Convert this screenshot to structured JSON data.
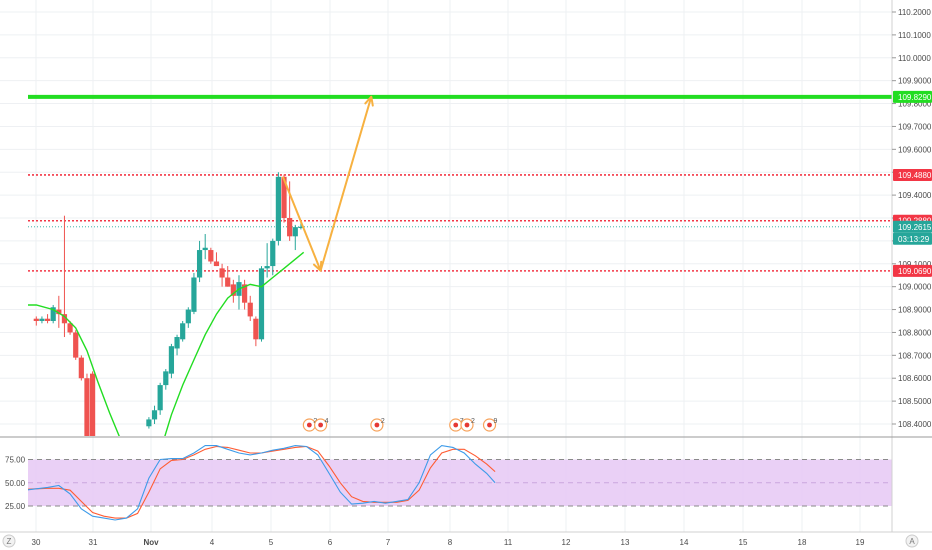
{
  "chart_data": {
    "type": "candlestick",
    "price_axis": {
      "ticks": [
        "110.2000",
        "110.1000",
        "110.0000",
        "109.9000",
        "109.8000",
        "109.7000",
        "109.6000",
        "109.5000",
        "109.4000",
        "109.3000",
        "109.2000",
        "109.1000",
        "109.0000",
        "108.9000",
        "108.8000",
        "108.7000",
        "108.6000",
        "108.5000",
        "108.4000"
      ],
      "range": [
        108.33,
        110.25
      ]
    },
    "time_axis": {
      "labels": [
        "30",
        "31",
        "Nov",
        "4",
        "5",
        "6",
        "7",
        "8",
        "11",
        "12",
        "13",
        "14",
        "15",
        "18",
        "19"
      ]
    },
    "price_labels": [
      {
        "text": "109.8290",
        "value": 109.829,
        "color": "#22dd22"
      },
      {
        "text": "109.4880",
        "value": 109.488,
        "color": "#f23645"
      },
      {
        "text": "109.2880",
        "value": 109.288,
        "color": "#f23645"
      },
      {
        "text": "109.2615",
        "value": 109.2615,
        "color": "#26a69a"
      },
      {
        "text": "03:13:29",
        "value": 109.2615,
        "color": "#26a69a"
      },
      {
        "text": "109.0690",
        "value": 109.069,
        "color": "#f23645"
      }
    ],
    "horizontal_lines": [
      {
        "value": 109.829,
        "color": "#22dd22",
        "style": "solid"
      },
      {
        "value": 109.488,
        "color": "#f23645",
        "style": "dotted"
      },
      {
        "value": 109.288,
        "color": "#f23645",
        "style": "dotted"
      },
      {
        "value": 109.069,
        "color": "#f23645",
        "style": "dotted"
      }
    ],
    "candles": [
      [
        0,
        108.86,
        108.87,
        108.83,
        108.85
      ],
      [
        1,
        108.85,
        108.87,
        108.84,
        108.86
      ],
      [
        2,
        108.86,
        108.88,
        108.84,
        108.85
      ],
      [
        3,
        108.85,
        108.92,
        108.84,
        108.91
      ],
      [
        4,
        108.9,
        108.96,
        108.82,
        108.88
      ],
      [
        5,
        108.88,
        109.31,
        108.78,
        108.84
      ],
      [
        6,
        108.84,
        108.85,
        108.79,
        108.8
      ],
      [
        7,
        108.8,
        108.81,
        108.68,
        108.69
      ],
      [
        8,
        108.69,
        108.7,
        108.59,
        108.6
      ],
      [
        9,
        108.6,
        108.62,
        108.2,
        108.22
      ],
      [
        10,
        108.62,
        108.63,
        108.1,
        108.15
      ],
      [
        20,
        108.39,
        108.43,
        108.38,
        108.42
      ],
      [
        21,
        108.42,
        108.48,
        108.4,
        108.46
      ],
      [
        22,
        108.46,
        108.58,
        108.44,
        108.57
      ],
      [
        23,
        108.57,
        108.64,
        108.55,
        108.63
      ],
      [
        24,
        108.62,
        108.75,
        108.6,
        108.74
      ],
      [
        25,
        108.73,
        108.79,
        108.7,
        108.78
      ],
      [
        26,
        108.77,
        108.85,
        108.76,
        108.84
      ],
      [
        27,
        108.84,
        108.91,
        108.82,
        108.9
      ],
      [
        28,
        108.89,
        109.06,
        108.88,
        109.04
      ],
      [
        29,
        109.04,
        109.2,
        109.02,
        109.16
      ],
      [
        30,
        109.16,
        109.23,
        109.12,
        109.17
      ],
      [
        31,
        109.16,
        109.17,
        109.1,
        109.11
      ],
      [
        32,
        109.11,
        109.15,
        109.09,
        109.09
      ],
      [
        33,
        109.08,
        109.1,
        109.0,
        109.04
      ],
      [
        34,
        109.04,
        109.09,
        109.0,
        109.0
      ],
      [
        35,
        109.01,
        109.03,
        108.93,
        108.96
      ],
      [
        36,
        108.96,
        109.05,
        108.9,
        109.02
      ],
      [
        37,
        109.01,
        109.03,
        108.9,
        108.93
      ],
      [
        38,
        108.93,
        108.96,
        108.85,
        108.87
      ],
      [
        39,
        108.86,
        108.87,
        108.74,
        108.77
      ],
      [
        40,
        108.77,
        109.09,
        108.76,
        109.08
      ],
      [
        41,
        109.08,
        109.19,
        109.04,
        109.09
      ],
      [
        42,
        109.09,
        109.21,
        109.05,
        109.2
      ],
      [
        43,
        109.2,
        109.5,
        109.18,
        109.48
      ],
      [
        44,
        109.48,
        109.49,
        109.28,
        109.3
      ],
      [
        45,
        109.3,
        109.46,
        109.2,
        109.22
      ],
      [
        46,
        109.22,
        109.27,
        109.16,
        109.26
      ],
      [
        47,
        109.26,
        109.28,
        109.25,
        109.2615
      ]
    ],
    "moving_average": [
      [
        -2,
        108.92
      ],
      [
        0,
        108.92
      ],
      [
        3,
        108.9
      ],
      [
        5,
        108.87
      ],
      [
        7,
        108.82
      ],
      [
        9,
        108.72
      ],
      [
        11,
        108.58
      ],
      [
        13,
        108.45
      ],
      [
        15,
        108.33
      ],
      [
        22,
        108.28
      ],
      [
        24,
        108.44
      ],
      [
        26,
        108.57
      ],
      [
        28,
        108.68
      ],
      [
        30,
        108.79
      ],
      [
        32,
        108.88
      ],
      [
        34,
        108.95
      ],
      [
        36,
        108.99
      ],
      [
        38,
        109.01
      ],
      [
        40,
        109.0
      ],
      [
        42,
        109.04
      ],
      [
        44,
        109.08
      ],
      [
        46,
        109.12
      ],
      [
        47.5,
        109.15
      ]
    ],
    "projection_arrow": [
      [
        43.8,
        109.48
      ],
      [
        50.5,
        109.07
      ],
      [
        59.5,
        109.83
      ]
    ],
    "stochastic": {
      "y_ticks": [
        "75.00",
        "50.00",
        "25.00"
      ],
      "band": [
        25,
        75
      ],
      "k": [
        [
          -2,
          42
        ],
        [
          2,
          45
        ],
        [
          4,
          47
        ],
        [
          6,
          38
        ],
        [
          8,
          22
        ],
        [
          10,
          14
        ],
        [
          12,
          12
        ],
        [
          14,
          10
        ],
        [
          16,
          12
        ],
        [
          18,
          22
        ],
        [
          20,
          55
        ],
        [
          22,
          75
        ],
        [
          24,
          76
        ],
        [
          26,
          76
        ],
        [
          28,
          82
        ],
        [
          30,
          90
        ],
        [
          32,
          90
        ],
        [
          34,
          86
        ],
        [
          36,
          82
        ],
        [
          38,
          80
        ],
        [
          40,
          82
        ],
        [
          42,
          85
        ],
        [
          44,
          87
        ],
        [
          46,
          90
        ],
        [
          48,
          89
        ],
        [
          50,
          80
        ],
        [
          52,
          60
        ],
        [
          54,
          40
        ],
        [
          56,
          27
        ],
        [
          58,
          28
        ],
        [
          60,
          30
        ],
        [
          62,
          28
        ],
        [
          64,
          30
        ],
        [
          66,
          32
        ],
        [
          68,
          50
        ],
        [
          70,
          80
        ],
        [
          72,
          90
        ],
        [
          74,
          88
        ],
        [
          76,
          82
        ],
        [
          78,
          70
        ],
        [
          80,
          60
        ],
        [
          81.5,
          50
        ]
      ],
      "d": [
        [
          -2,
          43
        ],
        [
          2,
          44
        ],
        [
          4,
          44
        ],
        [
          6,
          42
        ],
        [
          8,
          30
        ],
        [
          10,
          18
        ],
        [
          12,
          14
        ],
        [
          14,
          12
        ],
        [
          16,
          12
        ],
        [
          18,
          17
        ],
        [
          20,
          40
        ],
        [
          22,
          65
        ],
        [
          24,
          74
        ],
        [
          26,
          75
        ],
        [
          28,
          80
        ],
        [
          30,
          86
        ],
        [
          32,
          89
        ],
        [
          34,
          88
        ],
        [
          36,
          85
        ],
        [
          38,
          82
        ],
        [
          40,
          82
        ],
        [
          42,
          84
        ],
        [
          44,
          86
        ],
        [
          46,
          88
        ],
        [
          48,
          89
        ],
        [
          50,
          84
        ],
        [
          52,
          68
        ],
        [
          54,
          50
        ],
        [
          56,
          35
        ],
        [
          58,
          30
        ],
        [
          60,
          29
        ],
        [
          62,
          29
        ],
        [
          64,
          29
        ],
        [
          66,
          31
        ],
        [
          68,
          42
        ],
        [
          70,
          66
        ],
        [
          72,
          82
        ],
        [
          74,
          86
        ],
        [
          76,
          86
        ],
        [
          78,
          79
        ],
        [
          80,
          70
        ],
        [
          81.5,
          62
        ]
      ]
    },
    "event_markers": [
      {
        "text": "2",
        "slot": 48.5
      },
      {
        "text": "4",
        "slot": 50.5
      },
      {
        "text": "2",
        "slot": 60.5
      },
      {
        "text": "7",
        "slot": 74.5
      },
      {
        "text": "2",
        "slot": 76.5
      },
      {
        "text": "9",
        "slot": 80.5
      }
    ]
  },
  "corner": {
    "left": "Z",
    "right": "A"
  },
  "colors": {
    "up": "#26a69a",
    "down": "#ef5350",
    "ma": "#22dd22",
    "arrow": "#f7b140",
    "stoch_k": "#3d9be9",
    "stoch_d": "#ff5c33",
    "band": "#e6c8f5"
  }
}
